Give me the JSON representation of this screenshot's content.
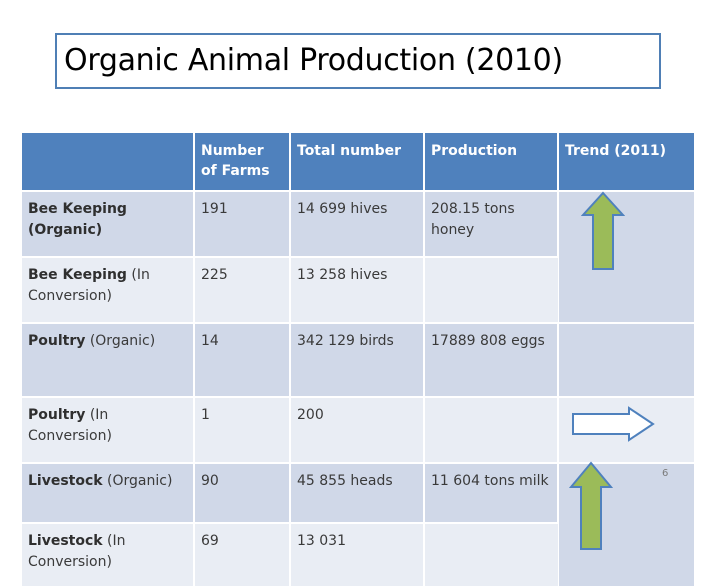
{
  "title": "Organic Animal Production (2010)",
  "page_number": "6",
  "table": {
    "headers": [
      "",
      "Number of Farms",
      "Total number",
      "Production",
      "Trend (2011)"
    ],
    "rows": [
      {
        "name_bold": "Bee Keeping (Organic)",
        "name_rest": "",
        "farms": "191",
        "total": "14 699 hives",
        "production": "208.15 tons honey"
      },
      {
        "name_bold": "Bee Keeping",
        "name_rest": " (In Conversion)",
        "farms": "225",
        "total": "13 258 hives",
        "production": ""
      },
      {
        "name_bold": "Poultry",
        "name_rest": " (Organic)",
        "farms": "14",
        "total": "342 129 birds",
        "production": "17889 808 eggs"
      },
      {
        "name_bold": "Poultry",
        "name_rest": " (In Conversion)",
        "farms": "1",
        "total": "200",
        "production": ""
      },
      {
        "name_bold": "Livestock",
        "name_rest": " (Organic)",
        "farms": "90",
        "total": "45 855 heads",
        "production": "11 604 tons milk"
      },
      {
        "name_bold": "Livestock",
        "name_rest": " (In Conversion)",
        "farms": "69",
        "total": "13 031",
        "production": ""
      }
    ]
  },
  "trends": [
    {
      "direction": "up",
      "icon": "up-arrow-icon"
    },
    {
      "direction": "right",
      "icon": "right-arrow-icon"
    },
    {
      "direction": "up",
      "icon": "up-arrow-icon"
    }
  ],
  "colors": {
    "header_bg": "#4f81bd",
    "row_dark": "#d0d8e8",
    "row_light": "#e9edf4",
    "arrow_up_fill": "#9bbb59",
    "arrow_right_fill": "#ffffff",
    "arrow_stroke": "#4f81bd"
  }
}
